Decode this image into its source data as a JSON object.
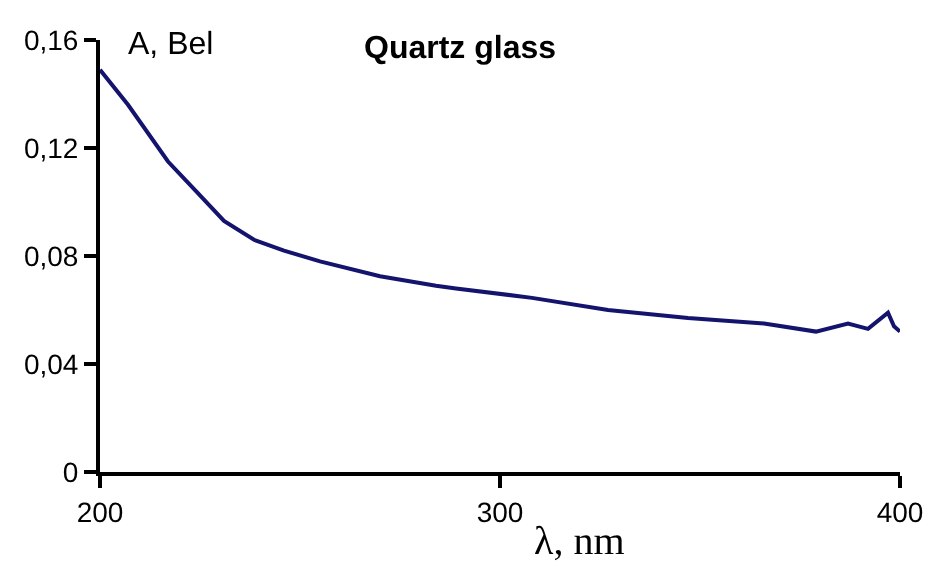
{
  "chart_data": {
    "type": "line",
    "title": "Quartz glass",
    "xlabel": "λ, nm",
    "ylabel": "A, Bel",
    "x": [
      200,
      207,
      217,
      224,
      231,
      238.5,
      246,
      255,
      270,
      284,
      289,
      308,
      327,
      347,
      366,
      379,
      387,
      392,
      397,
      398.5,
      400
    ],
    "series": [
      {
        "color": "#14146e",
        "values": [
          0.149,
          0.136,
          0.115,
          0.104,
          0.093,
          0.086,
          0.082,
          0.078,
          0.0725,
          0.069,
          0.068,
          0.0645,
          0.06,
          0.057,
          0.055,
          0.052,
          0.055,
          0.053,
          0.059,
          0.054,
          0.052
        ]
      }
    ],
    "xlim": [
      200,
      400
    ],
    "xticks": [
      200,
      300,
      400
    ],
    "ylim": [
      0,
      0.16
    ],
    "yticks": [
      {
        "value": 0,
        "label": "0"
      },
      {
        "value": 0.04,
        "label": "0,04"
      },
      {
        "value": 0.08,
        "label": "0,08"
      },
      {
        "value": 0.12,
        "label": "0,12"
      },
      {
        "value": 0.16,
        "label": "0,16"
      }
    ],
    "legend": false,
    "marker": "none",
    "line_style": "solid"
  }
}
